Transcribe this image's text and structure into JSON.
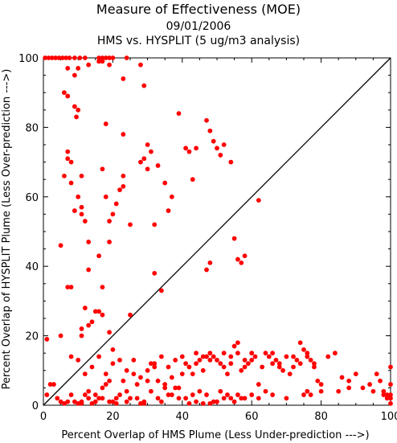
{
  "chart_data": {
    "type": "scatter",
    "title": "Measure of Effectiveness (MOE)",
    "subtitle": "09/01/2006",
    "subtitle2": "HMS vs. HYSPLIT  (5 ug/m3 analysis)",
    "xlabel": "Percent Overlap of HMS Plume (Less Under-prediction --->)",
    "ylabel": "Percent Overlap of HYSPLIT Plume (Less Over-prediction --->)",
    "xlim": [
      0,
      100
    ],
    "ylim": [
      0,
      100
    ],
    "xticks": [
      0,
      20,
      40,
      60,
      80,
      100
    ],
    "yticks": [
      0,
      20,
      40,
      60,
      80,
      100
    ],
    "grid": false,
    "diagonal_line": true,
    "point_color": "#ff0000",
    "line_color": "#000000",
    "points": [
      [
        0.5,
        100
      ],
      [
        1.5,
        100
      ],
      [
        2.5,
        100
      ],
      [
        3.5,
        100
      ],
      [
        4.5,
        100
      ],
      [
        5.5,
        100
      ],
      [
        6.5,
        100
      ],
      [
        7.5,
        100
      ],
      [
        9,
        100
      ],
      [
        10.5,
        100
      ],
      [
        12,
        100
      ],
      [
        16,
        100
      ],
      [
        17,
        100
      ],
      [
        18,
        100
      ],
      [
        19,
        100
      ],
      [
        20,
        100
      ],
      [
        24,
        100
      ],
      [
        7,
        97
      ],
      [
        9,
        95
      ],
      [
        10,
        97
      ],
      [
        13,
        98
      ],
      [
        16,
        99
      ],
      [
        17,
        99
      ],
      [
        19,
        98
      ],
      [
        23,
        94
      ],
      [
        28,
        98
      ],
      [
        29,
        92
      ],
      [
        6,
        90
      ],
      [
        7,
        89
      ],
      [
        9,
        86
      ],
      [
        9.5,
        83
      ],
      [
        10,
        85
      ],
      [
        18,
        81
      ],
      [
        7,
        73
      ],
      [
        7,
        71
      ],
      [
        8,
        70
      ],
      [
        6,
        66
      ],
      [
        8,
        64
      ],
      [
        11,
        66
      ],
      [
        10,
        60
      ],
      [
        11,
        57
      ],
      [
        9,
        56
      ],
      [
        11,
        55
      ],
      [
        12,
        53
      ],
      [
        17,
        68
      ],
      [
        18,
        60
      ],
      [
        19,
        53
      ],
      [
        20,
        55
      ],
      [
        21,
        58
      ],
      [
        22,
        62
      ],
      [
        23,
        63
      ],
      [
        23,
        66
      ],
      [
        25,
        52
      ],
      [
        23,
        78
      ],
      [
        5,
        46
      ],
      [
        13,
        47
      ],
      [
        13,
        39
      ],
      [
        16,
        43
      ],
      [
        17,
        34
      ],
      [
        19,
        47
      ],
      [
        32,
        52
      ],
      [
        30,
        75
      ],
      [
        31,
        73
      ],
      [
        29,
        71
      ],
      [
        28,
        70
      ],
      [
        30,
        68
      ],
      [
        33,
        69
      ],
      [
        35,
        64
      ],
      [
        36,
        56
      ],
      [
        37,
        60
      ],
      [
        39,
        84
      ],
      [
        41,
        74
      ],
      [
        42,
        73
      ],
      [
        43,
        65
      ],
      [
        44,
        74
      ],
      [
        47,
        82
      ],
      [
        48,
        79
      ],
      [
        49,
        76
      ],
      [
        50,
        74
      ],
      [
        51,
        72
      ],
      [
        52,
        75
      ],
      [
        54,
        70
      ],
      [
        55,
        48
      ],
      [
        56,
        42
      ],
      [
        57,
        41
      ],
      [
        58,
        43
      ],
      [
        48,
        41
      ],
      [
        47,
        39
      ],
      [
        62,
        59
      ],
      [
        7,
        34
      ],
      [
        8,
        34
      ],
      [
        14,
        24
      ],
      [
        15,
        27
      ],
      [
        16,
        27
      ],
      [
        17,
        26
      ],
      [
        19,
        21
      ],
      [
        20,
        16
      ],
      [
        11,
        22
      ],
      [
        11,
        20
      ],
      [
        12,
        28
      ],
      [
        13,
        23
      ],
      [
        25,
        26
      ],
      [
        32,
        38
      ],
      [
        34,
        33
      ],
      [
        1,
        19
      ],
      [
        5,
        20
      ],
      [
        1,
        3
      ],
      [
        2,
        6
      ],
      [
        3,
        6
      ],
      [
        4,
        2
      ],
      [
        5,
        1
      ],
      [
        6,
        0.5
      ],
      [
        7,
        1
      ],
      [
        8,
        3
      ],
      [
        9,
        1
      ],
      [
        10,
        0.5
      ],
      [
        11,
        0.5
      ],
      [
        12,
        3
      ],
      [
        13,
        4
      ],
      [
        14,
        0.5
      ],
      [
        15,
        3
      ],
      [
        16,
        2
      ],
      [
        17,
        5
      ],
      [
        18,
        6
      ],
      [
        19,
        7
      ],
      [
        20,
        1
      ],
      [
        21,
        0.5
      ],
      [
        22,
        3
      ],
      [
        23,
        7
      ],
      [
        24,
        4
      ],
      [
        25,
        2
      ],
      [
        26,
        9
      ],
      [
        27,
        6
      ],
      [
        28,
        0.5
      ],
      [
        29,
        0.5
      ],
      [
        30,
        7
      ],
      [
        31,
        12
      ],
      [
        32,
        11
      ],
      [
        33,
        7
      ],
      [
        34,
        1
      ],
      [
        35,
        6
      ],
      [
        36,
        3
      ],
      [
        37,
        8
      ],
      [
        38,
        5
      ],
      [
        39,
        2
      ],
      [
        40,
        14
      ],
      [
        41,
        12
      ],
      [
        42,
        11
      ],
      [
        43,
        9
      ],
      [
        44,
        12
      ],
      [
        45,
        13
      ],
      [
        46,
        10
      ],
      [
        47,
        14
      ],
      [
        48,
        15
      ],
      [
        49,
        14
      ],
      [
        50,
        13
      ],
      [
        51,
        12
      ],
      [
        52,
        11
      ],
      [
        53,
        9
      ],
      [
        54,
        14
      ],
      [
        55,
        17
      ],
      [
        56,
        15
      ],
      [
        57,
        10
      ],
      [
        58,
        11
      ],
      [
        59,
        12
      ],
      [
        60,
        13
      ],
      [
        61,
        14
      ],
      [
        62,
        6
      ],
      [
        63,
        11
      ],
      [
        64,
        15
      ],
      [
        65,
        14
      ],
      [
        66,
        12
      ],
      [
        67,
        13
      ],
      [
        68,
        11
      ],
      [
        69,
        10
      ],
      [
        70,
        14
      ],
      [
        71,
        9
      ],
      [
        72,
        11
      ],
      [
        73,
        13
      ],
      [
        74,
        18
      ],
      [
        75,
        16
      ],
      [
        76,
        15
      ],
      [
        77,
        13
      ],
      [
        78,
        11
      ],
      [
        79,
        7
      ],
      [
        80,
        6
      ],
      [
        82,
        14
      ],
      [
        84,
        15
      ],
      [
        86,
        8
      ],
      [
        88,
        7
      ],
      [
        90,
        9
      ],
      [
        92,
        5
      ],
      [
        94,
        6
      ],
      [
        96,
        9
      ],
      [
        97,
        7
      ],
      [
        98,
        4
      ],
      [
        99,
        3
      ],
      [
        100,
        11
      ],
      [
        100,
        6
      ],
      [
        100,
        2
      ],
      [
        100,
        3
      ],
      [
        42,
        0.5
      ],
      [
        44,
        1
      ],
      [
        46,
        0.5
      ],
      [
        48,
        0.5
      ],
      [
        50,
        1
      ],
      [
        52,
        2
      ],
      [
        54,
        2
      ],
      [
        56,
        3
      ],
      [
        58,
        2
      ],
      [
        60,
        3
      ],
      [
        62,
        2
      ],
      [
        64,
        4
      ],
      [
        66,
        3
      ],
      [
        70,
        2
      ],
      [
        75,
        3
      ],
      [
        76,
        4
      ],
      [
        77,
        3
      ],
      [
        80,
        4
      ],
      [
        85,
        4
      ],
      [
        88,
        5
      ],
      [
        95,
        4
      ],
      [
        98,
        3
      ],
      [
        99,
        2
      ],
      [
        100,
        0.5
      ],
      [
        37,
        3
      ],
      [
        39,
        5
      ],
      [
        41,
        2
      ],
      [
        43,
        3
      ],
      [
        45,
        4
      ],
      [
        47,
        3
      ],
      [
        49,
        1
      ],
      [
        51,
        4
      ],
      [
        53,
        3
      ],
      [
        55,
        1
      ],
      [
        57,
        2
      ],
      [
        11,
        1
      ],
      [
        13,
        2
      ],
      [
        15,
        1
      ],
      [
        17,
        2
      ],
      [
        19,
        1
      ],
      [
        21,
        2
      ],
      [
        24,
        1
      ],
      [
        27,
        2
      ],
      [
        29,
        1
      ],
      [
        31,
        4
      ],
      [
        33,
        2
      ],
      [
        35,
        5
      ],
      [
        8,
        14
      ],
      [
        10,
        13
      ],
      [
        12,
        9
      ],
      [
        14,
        11
      ],
      [
        16,
        14
      ],
      [
        18,
        9
      ],
      [
        20,
        12
      ],
      [
        22,
        13
      ],
      [
        24,
        10
      ],
      [
        26,
        13
      ],
      [
        28,
        8
      ],
      [
        30,
        10
      ],
      [
        32,
        12
      ],
      [
        34,
        14
      ],
      [
        36,
        11
      ],
      [
        38,
        13
      ],
      [
        40,
        9
      ],
      [
        44,
        15
      ],
      [
        46,
        14
      ],
      [
        48,
        13
      ],
      [
        52,
        15
      ],
      [
        54,
        12
      ],
      [
        56,
        18
      ],
      [
        58,
        13
      ],
      [
        60,
        15
      ],
      [
        66,
        15
      ],
      [
        68,
        12
      ],
      [
        72,
        14
      ],
      [
        74,
        12
      ],
      [
        76,
        14
      ],
      [
        78,
        12
      ]
    ]
  }
}
